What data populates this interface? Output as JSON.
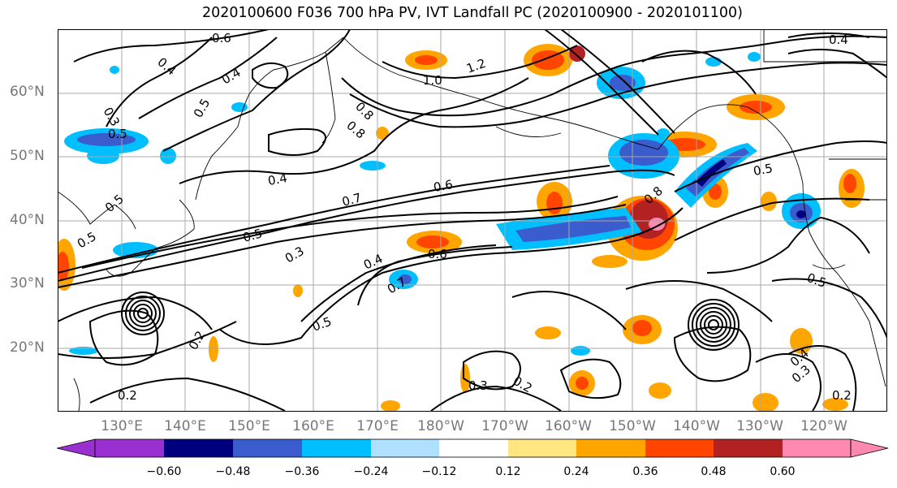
{
  "title": "2020100600 F036 700 hPa PV, IVT Landfall PC (2020100900 - 2020101100)",
  "lat_labels": [
    "60°N",
    "50°N",
    "40°N",
    "30°N",
    "20°N"
  ],
  "lon_labels": [
    "130°E",
    "140°E",
    "150°E",
    "160°E",
    "170°E",
    "180°W",
    "170°W",
    "160°W",
    "150°W",
    "140°W",
    "130°W",
    "120°W"
  ],
  "colorbar": {
    "ticks": [
      "−0.60",
      "−0.48",
      "−0.36",
      "−0.24",
      "−0.12",
      "0.12",
      "0.24",
      "0.36",
      "0.48",
      "0.60"
    ],
    "colors": [
      "#9b30d0",
      "#00007f",
      "#3a5ccc",
      "#00bfff",
      "#afe0ff",
      "#ffffff",
      "#ffe680",
      "#ffa500",
      "#ff4500",
      "#b22222",
      "#ff88b0"
    ]
  },
  "contour_labels": [
    "0.6",
    "1.0",
    "0.8",
    "0.4",
    "1.2",
    "0.5",
    "0.4",
    "0.3",
    "0.5",
    "0.4",
    "0.8",
    "0.4",
    "0.7",
    "0.6",
    "0.8",
    "0.5",
    "0.5",
    "0.3",
    "0.5",
    "0.4",
    "0.6",
    "0.7",
    "0.5",
    "0.2",
    "0.3",
    "0.2",
    "0.2",
    "0.4",
    "0.3",
    "0.2",
    "0.5",
    "0.5"
  ]
}
